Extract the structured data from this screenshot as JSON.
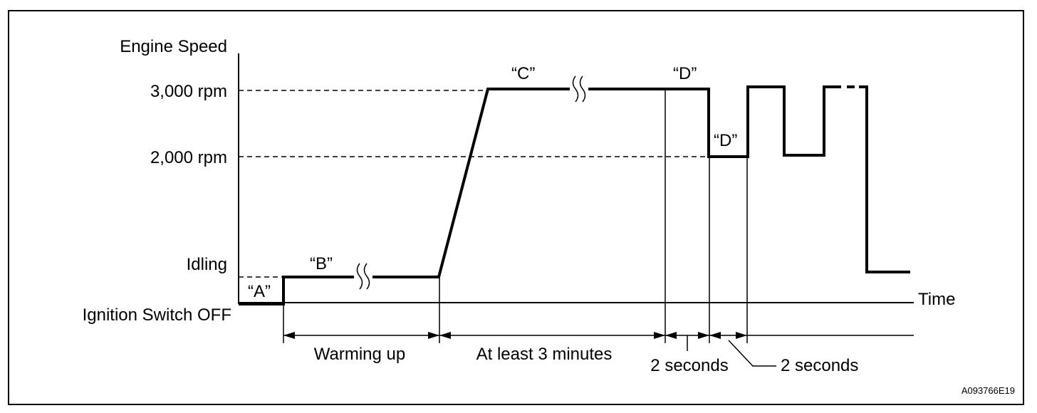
{
  "y_axis": {
    "title": "Engine Speed",
    "levels": [
      "3,000 rpm",
      "2,000 rpm",
      "Idling",
      "Ignition Switch OFF"
    ]
  },
  "x_axis": {
    "title": "Time"
  },
  "phases": {
    "a": "“A”",
    "b": "“B”",
    "c": "“C”",
    "d_high": "“D”",
    "d_low": "“D”"
  },
  "intervals": {
    "warming": "Warming up",
    "three_min": "At least 3 minutes",
    "two_sec_1": "2 seconds",
    "two_sec_2": "2 seconds"
  },
  "figure_id": "A093766E19"
}
